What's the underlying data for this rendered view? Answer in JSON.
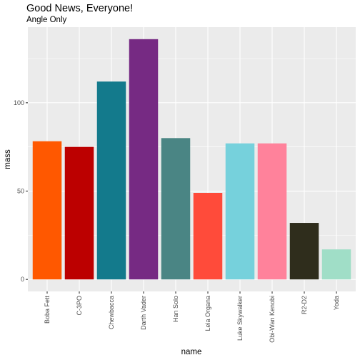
{
  "chart_data": {
    "type": "bar",
    "title": "Good News, Everyone!",
    "subtitle": "Angle Only",
    "xlabel": "name",
    "ylabel": "mass",
    "categories": [
      "Boba Fett",
      "C-3PO",
      "Chewbacca",
      "Darth Vader",
      "Han Solo",
      "Leia Organa",
      "Luke Skywalker",
      "Obi-Wan Kenobi",
      "R2-D2",
      "Yoda"
    ],
    "values": [
      78.2,
      75,
      112,
      136,
      80,
      49,
      77,
      77,
      32,
      17
    ],
    "bar_colors": [
      "#FF5800",
      "#BC0000",
      "#137A8C",
      "#762A83",
      "#4A8584",
      "#FF4B3A",
      "#76D1DC",
      "#FF829B",
      "#2F2D1C",
      "#A0DEC7"
    ],
    "ylim": [
      -6.8,
      142.8
    ],
    "yticks": [
      0,
      50,
      100
    ],
    "grid": true,
    "panel_background": "#EBEBEB",
    "x_tick_angle": 90
  }
}
